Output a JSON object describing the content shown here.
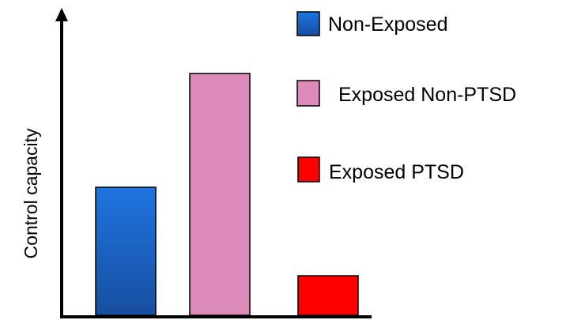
{
  "chart_data": {
    "type": "bar",
    "title": "",
    "xlabel": "",
    "ylabel": "Control capacity",
    "categories": [
      "Non-Exposed",
      "Exposed Non-PTSD",
      "Exposed PTSD"
    ],
    "values": [
      162,
      306,
      50
    ],
    "ylim": [
      0,
      330
    ],
    "grid": false,
    "show_tick_labels": false,
    "legend_position": "top-right",
    "colors": [
      "#1a5fc0",
      "#dc8bb8",
      "#ff0000"
    ],
    "bar_gradient_top": [
      "#1f74e0",
      "#dc8bb8",
      "#ff0000"
    ],
    "bar_gradient_bottom": [
      "#174fa0",
      "#dc8bb8",
      "#ff0000"
    ]
  },
  "legend": {
    "items": [
      {
        "label": "Non-Exposed",
        "color": "#1a5fc0"
      },
      {
        "label": "Exposed Non-PTSD",
        "color": "#dc8bb8"
      },
      {
        "label": "Exposed PTSD",
        "color": "#ff0000"
      }
    ]
  }
}
